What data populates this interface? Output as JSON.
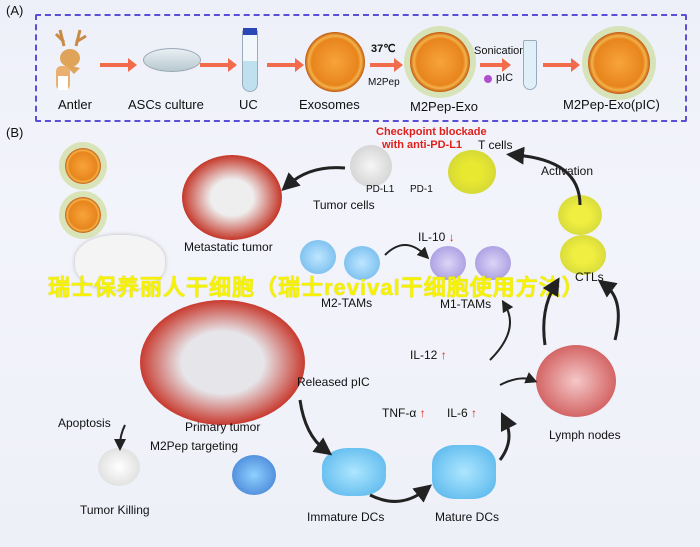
{
  "panel_a": {
    "label": "(A)",
    "steps": [
      "Antler",
      "ASCs culture",
      "UC",
      "Exosomes",
      "M2Pep-Exo",
      "M2Pep-Exo(pIC)"
    ],
    "temperature": "37℃",
    "peptide": "M2Pep",
    "sonication": "Sonication",
    "pic": "pIC"
  },
  "panel_b": {
    "label": "(B)",
    "checkpoint": [
      "Checkpoint blockade",
      "with anti-PD-L1"
    ],
    "t_cells": "T cells",
    "pd_l1": "PD-L1",
    "pd_1": "PD-1",
    "activation": "Activation",
    "tumor_cells": "Tumor cells",
    "metastatic_tumor": "Metastatic tumor",
    "il10": "IL-10",
    "m2_tams": "M2-TAMs",
    "m1_tams": "M1-TAMs",
    "ctls": "CTLs",
    "il12": "IL-12",
    "released_pic": "Released pIC",
    "primary_tumor": "Primary tumor",
    "m2pep_targeting": "M2Pep targeting",
    "apoptosis": "Apoptosis",
    "tumor_killing": "Tumor Killing",
    "tnf": "TNF-α",
    "il6": "IL-6",
    "lymph_nodes": "Lymph nodes",
    "immature_dcs": "Immature DCs",
    "mature_dcs": "Mature DCs",
    "up_arrow": "↑",
    "down_arrow": "↓"
  },
  "watermark": "瑞士保养丽人干细胞（瑞士revival干细胞使用方法）",
  "colors": {
    "panel_border": "#5a4fd6",
    "arrow": "#f26b4a",
    "highlight": "#e0201c",
    "watermark": "#f7f200"
  }
}
